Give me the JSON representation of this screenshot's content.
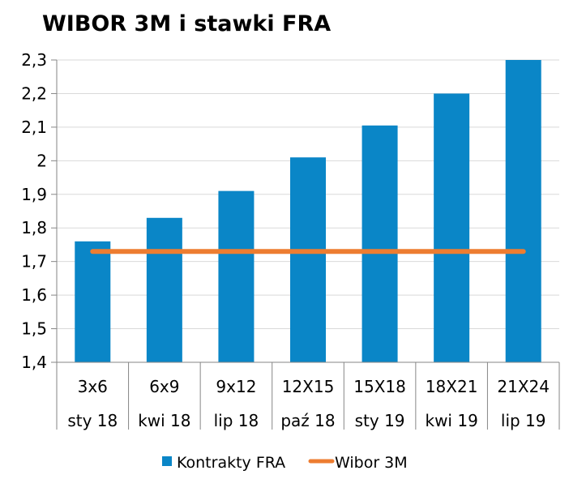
{
  "chart_data": {
    "type": "bar",
    "title": "WIBOR 3M i stawki FRA",
    "categories": [
      "3x6",
      "6x9",
      "9x12",
      "12X15",
      "15X18",
      "18X21",
      "21X24"
    ],
    "subcategories": [
      "sty 18",
      "kwi 18",
      "lip 18",
      "paź 18",
      "sty 19",
      "kwi 19",
      "lip 19"
    ],
    "series": [
      {
        "name": "Kontrakty FRA",
        "type": "bar",
        "color": "#0a86c7",
        "values": [
          1.76,
          1.83,
          1.91,
          2.01,
          2.105,
          2.2,
          2.3
        ]
      },
      {
        "name": "Wibor 3M",
        "type": "line",
        "color": "#ed7d31",
        "values": [
          1.73,
          1.73,
          1.73,
          1.73,
          1.73,
          1.73,
          1.73
        ]
      }
    ],
    "ylim": [
      1.4,
      2.3
    ],
    "yticks": [
      1.4,
      1.5,
      1.6,
      1.7,
      1.8,
      1.9,
      2.0,
      2.1,
      2.2,
      2.3
    ],
    "ytick_labels": [
      "1,4",
      "1,5",
      "1,6",
      "1,7",
      "1,8",
      "1,9",
      "2",
      "2,1",
      "2,2",
      "2,3"
    ],
    "grid": true,
    "legend": "bottom",
    "xlabel": "",
    "ylabel": ""
  }
}
